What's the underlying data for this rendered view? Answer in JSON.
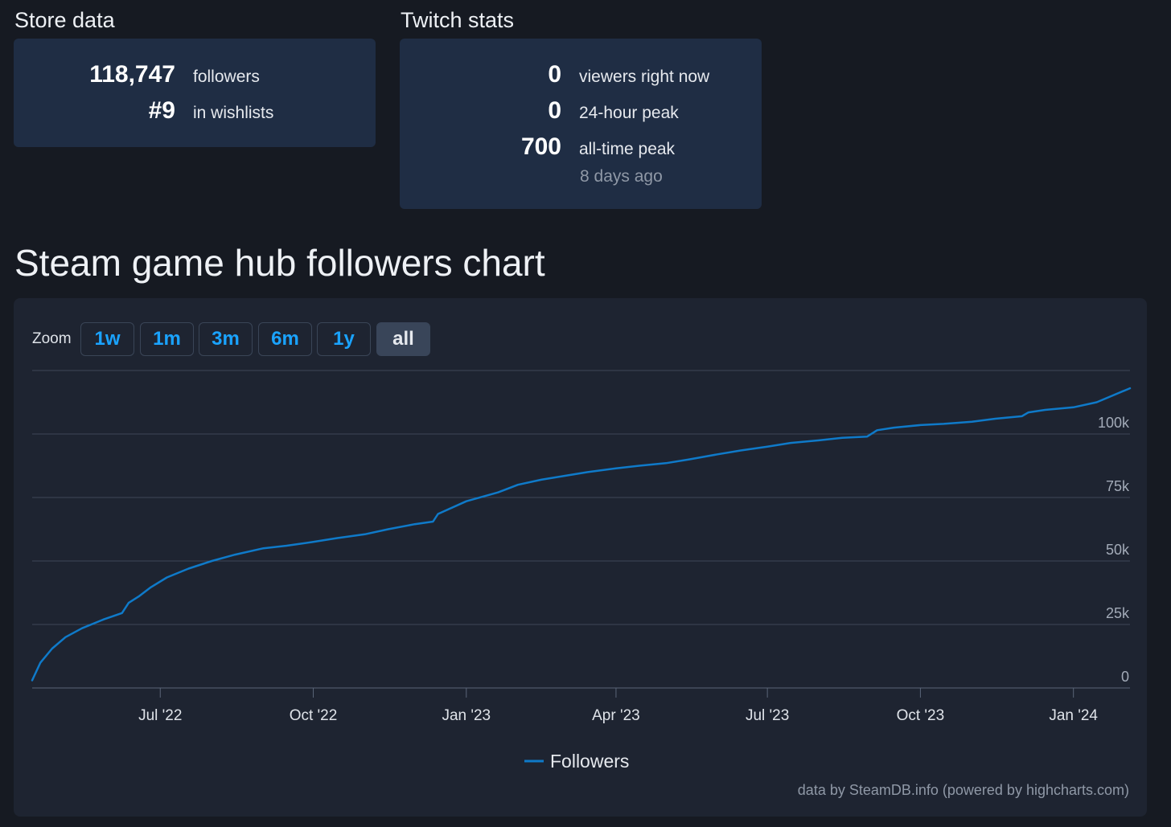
{
  "store": {
    "title": "Store data",
    "followers_value": "118,747",
    "followers_label": "followers",
    "wishlist_value": "#9",
    "wishlist_label": "in wishlists"
  },
  "twitch": {
    "title": "Twitch stats",
    "viewers_value": "0",
    "viewers_label": "viewers right now",
    "peak24_value": "0",
    "peak24_label": "24-hour peak",
    "alltime_value": "700",
    "alltime_label": "all-time peak",
    "alltime_sub": "8 days ago"
  },
  "chart_title": "Steam game hub followers chart",
  "zoom": {
    "label": "Zoom",
    "buttons": [
      "1w",
      "1m",
      "3m",
      "6m",
      "1y",
      "all"
    ],
    "active": "all"
  },
  "credit": "data by SteamDB.info (powered by highcharts.com)",
  "colors": {
    "line": "#0f7ac9",
    "accent": "#1aa3ff"
  },
  "chart_data": {
    "type": "line",
    "title": "",
    "xlabel": "",
    "ylabel": "",
    "x_range": [
      "2022-04-15",
      "2024-02-04"
    ],
    "ylim": [
      0,
      125000
    ],
    "y_ticks": [
      0,
      25000,
      50000,
      75000,
      100000
    ],
    "y_tick_labels": [
      "0",
      "25k",
      "50k",
      "75k",
      "100k"
    ],
    "x_ticks": [
      "2022-07-01",
      "2022-10-01",
      "2023-01-01",
      "2023-04-01",
      "2023-07-01",
      "2023-10-01",
      "2024-01-01"
    ],
    "x_tick_labels": [
      "Jul '22",
      "Oct '22",
      "Jan '23",
      "Apr '23",
      "Jul '23",
      "Oct '23",
      "Jan '24"
    ],
    "legend_position": "bottom-center",
    "grid": true,
    "series": [
      {
        "name": "Followers",
        "x": [
          "2022-04-15",
          "2022-04-20",
          "2022-04-27",
          "2022-05-05",
          "2022-05-15",
          "2022-05-28",
          "2022-06-08",
          "2022-06-12",
          "2022-06-18",
          "2022-06-25",
          "2022-07-05",
          "2022-07-18",
          "2022-08-01",
          "2022-08-15",
          "2022-09-01",
          "2022-09-15",
          "2022-10-01",
          "2022-10-15",
          "2022-11-01",
          "2022-11-15",
          "2022-12-01",
          "2022-12-12",
          "2022-12-15",
          "2023-01-01",
          "2023-01-20",
          "2023-02-01",
          "2023-02-15",
          "2023-03-01",
          "2023-03-15",
          "2023-04-01",
          "2023-04-15",
          "2023-05-01",
          "2023-05-15",
          "2023-06-01",
          "2023-06-15",
          "2023-07-01",
          "2023-07-15",
          "2023-08-01",
          "2023-08-15",
          "2023-08-30",
          "2023-09-05",
          "2023-09-15",
          "2023-10-01",
          "2023-10-15",
          "2023-11-01",
          "2023-11-15",
          "2023-12-01",
          "2023-12-05",
          "2023-12-15",
          "2024-01-01",
          "2024-01-15",
          "2024-02-04"
        ],
        "values": [
          3000,
          10000,
          15500,
          20000,
          23500,
          27000,
          29500,
          33500,
          36000,
          39500,
          43500,
          47000,
          50000,
          52500,
          55000,
          56000,
          57500,
          59000,
          60500,
          62500,
          64500,
          65500,
          68500,
          73500,
          77000,
          80000,
          82000,
          83500,
          85000,
          86500,
          87500,
          88500,
          90000,
          92000,
          93500,
          95000,
          96500,
          97500,
          98500,
          99000,
          101500,
          102500,
          103500,
          104000,
          104800,
          106000,
          107000,
          108500,
          109500,
          110500,
          112500,
          118000
        ]
      }
    ]
  }
}
